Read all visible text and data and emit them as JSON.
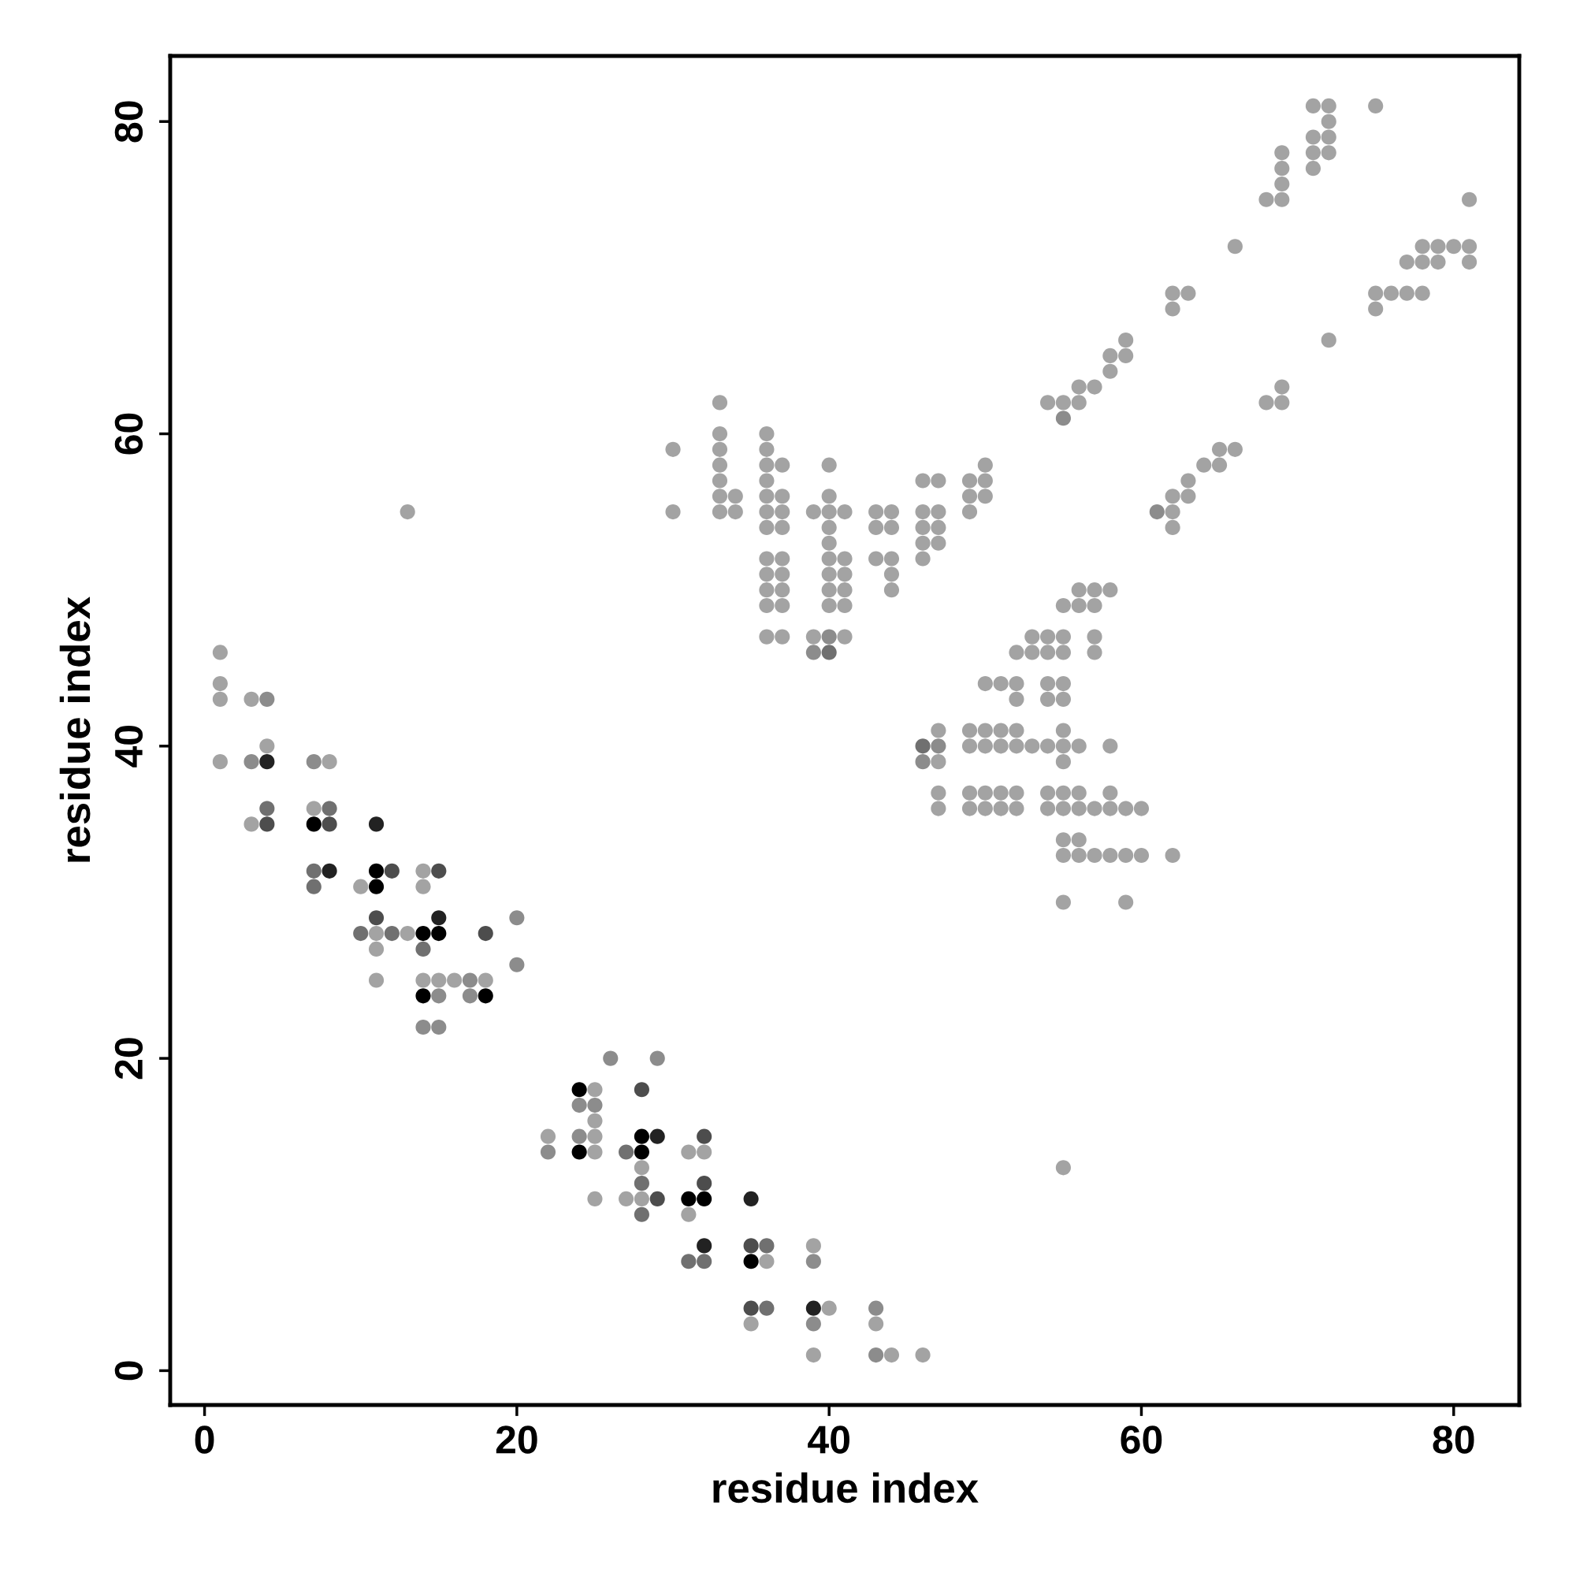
{
  "chart_data": {
    "type": "scatter",
    "xlabel": "residue index",
    "ylabel": "residue index",
    "xlim": [
      -2.2,
      84.2
    ],
    "ylim": [
      -2.2,
      84.2
    ],
    "xticks": [
      0,
      20,
      40,
      60,
      80
    ],
    "yticks": [
      0,
      20,
      40,
      60,
      80
    ],
    "marker": "circle",
    "series": [
      {
        "color": "#a3a3a3",
        "x": [
          1,
          1,
          1,
          3,
          4,
          1,
          8,
          3,
          7,
          14,
          10,
          14,
          11,
          13,
          11,
          11,
          14,
          15,
          16,
          18,
          13,
          25,
          25,
          22,
          25,
          25,
          31,
          32,
          28,
          25,
          27,
          28,
          31,
          39,
          36,
          40,
          35,
          43,
          39,
          44,
          46,
          30,
          30,
          33,
          33,
          33,
          33,
          33,
          33,
          33,
          34,
          34,
          36,
          36,
          36,
          36,
          36,
          36,
          36,
          36,
          36,
          36,
          36,
          36,
          37,
          37,
          37,
          37,
          37,
          37,
          37,
          37,
          37,
          39,
          39,
          40,
          40,
          40,
          40,
          40,
          40,
          40,
          40,
          40,
          41,
          41,
          41,
          41,
          41,
          41,
          43,
          43,
          43,
          44,
          44,
          44,
          44,
          44,
          46,
          46,
          46,
          46,
          46,
          47,
          47,
          47,
          47,
          49,
          49,
          49,
          50,
          50,
          50,
          54,
          55,
          56,
          56,
          57,
          58,
          58,
          59,
          59,
          62,
          62,
          63,
          66,
          68,
          69,
          69,
          69,
          69,
          71,
          71,
          71,
          71,
          72,
          72,
          72,
          72,
          75,
          81,
          78,
          79,
          80,
          81,
          77,
          78,
          79,
          81,
          75,
          76,
          77,
          78,
          75,
          72,
          69,
          68,
          69,
          65,
          66,
          64,
          65,
          63,
          62,
          63,
          62,
          62,
          55,
          56,
          57,
          56,
          57,
          58,
          53,
          54,
          55,
          57,
          52,
          53,
          54,
          55,
          57,
          50,
          51,
          52,
          54,
          55,
          52,
          54,
          55,
          47,
          49,
          50,
          51,
          52,
          55,
          49,
          50,
          51,
          52,
          53,
          54,
          55,
          56,
          58,
          47,
          55,
          47,
          49,
          50,
          51,
          52,
          54,
          55,
          56,
          58,
          47,
          49,
          50,
          51,
          52,
          54,
          55,
          56,
          57,
          58,
          59,
          60,
          55,
          56,
          55,
          56,
          57,
          58,
          59,
          60,
          62,
          55,
          59,
          55
        ],
        "values": [
          46,
          44,
          43,
          43,
          40,
          39,
          39,
          35,
          36,
          32,
          31,
          31,
          28,
          28,
          27,
          25,
          25,
          25,
          25,
          25,
          55,
          18,
          16,
          15,
          15,
          14,
          14,
          14,
          13,
          11,
          11,
          11,
          10,
          8,
          7,
          4,
          3,
          3,
          1,
          1,
          1,
          59,
          55,
          62,
          60,
          59,
          58,
          57,
          56,
          55,
          56,
          55,
          60,
          59,
          58,
          57,
          56,
          55,
          54,
          52,
          51,
          50,
          49,
          47,
          58,
          56,
          55,
          54,
          52,
          51,
          50,
          49,
          47,
          55,
          47,
          58,
          56,
          55,
          54,
          53,
          52,
          51,
          50,
          49,
          55,
          52,
          51,
          50,
          49,
          47,
          55,
          54,
          52,
          55,
          54,
          52,
          51,
          50,
          57,
          55,
          54,
          53,
          52,
          57,
          55,
          54,
          53,
          57,
          56,
          55,
          58,
          57,
          56,
          62,
          62,
          62,
          63,
          63,
          64,
          65,
          65,
          66,
          69,
          68,
          69,
          72,
          75,
          75,
          76,
          77,
          78,
          81,
          79,
          78,
          77,
          81,
          80,
          79,
          78,
          81,
          75,
          72,
          72,
          72,
          72,
          71,
          71,
          71,
          71,
          69,
          69,
          69,
          69,
          68,
          66,
          63,
          62,
          62,
          59,
          59,
          58,
          58,
          57,
          56,
          56,
          55,
          54,
          49,
          49,
          49,
          50,
          50,
          50,
          47,
          47,
          47,
          47,
          46,
          46,
          46,
          46,
          46,
          44,
          44,
          44,
          44,
          44,
          43,
          43,
          43,
          41,
          41,
          41,
          41,
          41,
          41,
          40,
          40,
          40,
          40,
          40,
          40,
          40,
          40,
          40,
          39,
          39,
          37,
          37,
          37,
          37,
          37,
          37,
          37,
          37,
          37,
          36,
          36,
          36,
          36,
          36,
          36,
          36,
          36,
          36,
          36,
          36,
          36,
          34,
          34,
          33,
          33,
          33,
          33,
          33,
          33,
          33,
          30,
          30,
          13
        ]
      },
      {
        "color": "#8c8c8c",
        "x": [
          4,
          3,
          7,
          20,
          20,
          17,
          15,
          17,
          14,
          15,
          26,
          29,
          24,
          25,
          24,
          22,
          39,
          39,
          43,
          43,
          40,
          39,
          46,
          47,
          55,
          61
        ],
        "values": [
          43,
          39,
          39,
          29,
          26,
          25,
          24,
          24,
          22,
          22,
          20,
          20,
          17,
          17,
          15,
          14,
          7,
          3,
          4,
          1,
          47,
          46,
          39,
          40,
          61,
          55
        ]
      },
      {
        "color": "#707070",
        "x": [
          4,
          8,
          7,
          7,
          10,
          12,
          14,
          27,
          28,
          28,
          31,
          32,
          36,
          36,
          40,
          46
        ],
        "values": [
          36,
          36,
          32,
          31,
          28,
          28,
          27,
          14,
          12,
          10,
          7,
          7,
          8,
          4,
          46,
          40
        ]
      },
      {
        "color": "#4d4d4d",
        "x": [
          4,
          8,
          12,
          15,
          11,
          18,
          28,
          32,
          32,
          29,
          35,
          35
        ],
        "values": [
          35,
          35,
          32,
          32,
          29,
          28,
          18,
          15,
          12,
          11,
          8,
          4
        ]
      },
      {
        "color": "#222222",
        "x": [
          4,
          8,
          15,
          11,
          29,
          35,
          32,
          39
        ],
        "values": [
          39,
          32,
          29,
          35,
          15,
          11,
          8,
          4
        ]
      },
      {
        "color": "#000000",
        "x": [
          7,
          11,
          11,
          14,
          15,
          14,
          18,
          24,
          24,
          28,
          28,
          31,
          32,
          35
        ],
        "values": [
          35,
          32,
          31,
          28,
          28,
          24,
          24,
          18,
          14,
          15,
          14,
          11,
          11,
          7
        ]
      }
    ]
  }
}
